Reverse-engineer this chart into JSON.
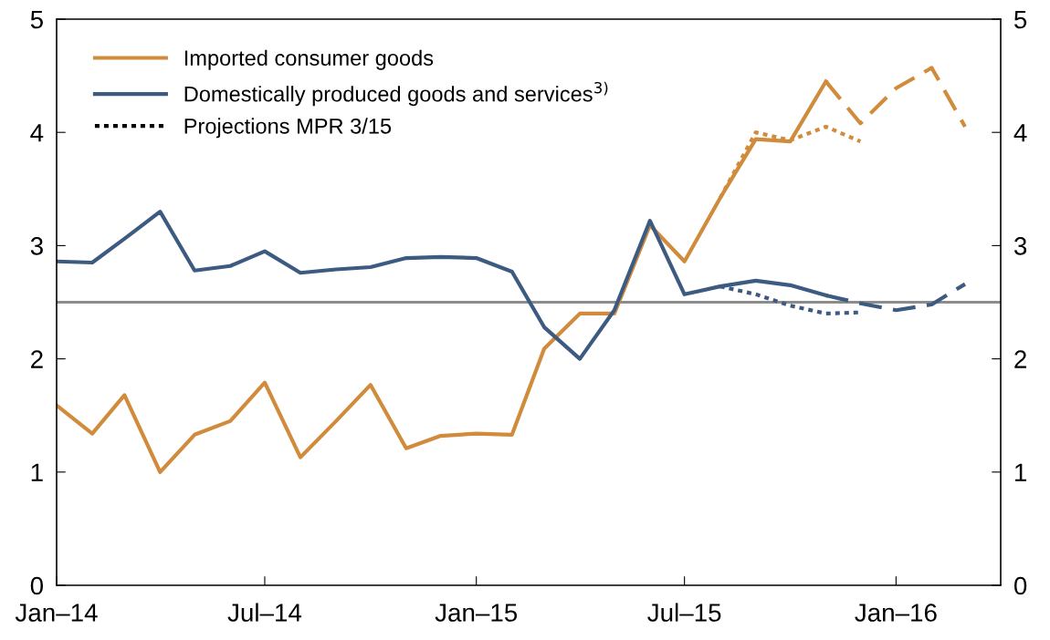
{
  "chart_data": {
    "type": "line",
    "series": [
      {
        "name": "Imported consumer goods",
        "color": "#d08c3c",
        "line_style": "solid",
        "x": [
          "2014-01",
          "2014-02",
          "2014-03",
          "2014-04",
          "2014-05",
          "2014-06",
          "2014-07",
          "2014-08",
          "2014-09",
          "2014-10",
          "2014-11",
          "2014-12",
          "2015-01",
          "2015-02",
          "2015-03",
          "2015-04",
          "2015-05",
          "2015-06",
          "2015-07",
          "2015-08",
          "2015-09",
          "2015-10",
          "2015-11"
        ],
        "values": [
          1.59,
          1.34,
          1.68,
          1.0,
          1.33,
          1.45,
          1.79,
          1.13,
          1.45,
          1.77,
          1.21,
          1.32,
          1.34,
          1.33,
          2.09,
          2.4,
          2.4,
          3.18,
          2.86,
          3.42,
          3.94,
          3.92,
          4.45
        ]
      },
      {
        "name": "Domestically produced goods and services$^{3)}$",
        "color": "#3d5a80",
        "line_style": "solid",
        "x": [
          "2014-01",
          "2014-02",
          "2014-03",
          "2014-04",
          "2014-05",
          "2014-06",
          "2014-07",
          "2014-08",
          "2014-09",
          "2014-10",
          "2014-11",
          "2014-12",
          "2015-01",
          "2015-02",
          "2015-03",
          "2015-04",
          "2015-05",
          "2015-06",
          "2015-07",
          "2015-08",
          "2015-09",
          "2015-10",
          "2015-11"
        ],
        "values": [
          2.86,
          2.85,
          3.06,
          3.3,
          2.78,
          2.82,
          2.95,
          2.76,
          2.79,
          2.81,
          2.89,
          2.9,
          2.89,
          2.77,
          2.28,
          2.0,
          2.43,
          3.22,
          2.57,
          2.64,
          2.69,
          2.65,
          2.56
        ]
      },
      {
        "color": "#d08c3c",
        "line_style": "dashed",
        "x": [
          "2015-11",
          "2015-12",
          "2016-01",
          "2016-02",
          "2016-03"
        ],
        "values": [
          4.45,
          4.08,
          4.39,
          4.57,
          4.05
        ]
      },
      {
        "color": "#3d5a80",
        "line_style": "dashed",
        "x": [
          "2015-11",
          "2015-12",
          "2016-01",
          "2016-02",
          "2016-03"
        ],
        "values": [
          2.56,
          2.49,
          2.43,
          2.48,
          2.66
        ]
      },
      {
        "color": "#d08c3c",
        "line_style": "dotted",
        "x": [
          "2015-08",
          "2015-09",
          "2015-10",
          "2015-11",
          "2015-12"
        ],
        "values": [
          3.42,
          4.0,
          3.93,
          4.05,
          3.92
        ]
      },
      {
        "color": "#3d5a80",
        "line_style": "dotted",
        "x": [
          "2015-08",
          "2015-09",
          "2015-10",
          "2015-11",
          "2015-12"
        ],
        "values": [
          2.64,
          2.57,
          2.47,
          2.4,
          2.41
        ]
      }
    ],
    "xlim": [
      "2014-01",
      "2016-04"
    ],
    "xticks": [
      {
        "value": "2014-01",
        "label": "Jan–14"
      },
      {
        "value": "2014-07",
        "label": "Jul–14"
      },
      {
        "value": "2015-01",
        "label": "Jan–15"
      },
      {
        "value": "2015-07",
        "label": "Jul–15"
      },
      {
        "value": "2016-01",
        "label": "Jan–16"
      }
    ],
    "ylim": [
      0,
      5
    ],
    "yticks": [
      0,
      1,
      2,
      3,
      4,
      5
    ],
    "y2lim": [
      0,
      5
    ],
    "y2ticks": [
      0,
      1,
      2,
      3,
      4,
      5
    ],
    "ref_lines": [
      {
        "axis": "y",
        "value": 2.5,
        "color": "#8c8c8c"
      }
    ],
    "annotations": [
      "Projections MPR 3/15"
    ],
    "legend": "top left",
    "grid": false,
    "marker": "none"
  }
}
